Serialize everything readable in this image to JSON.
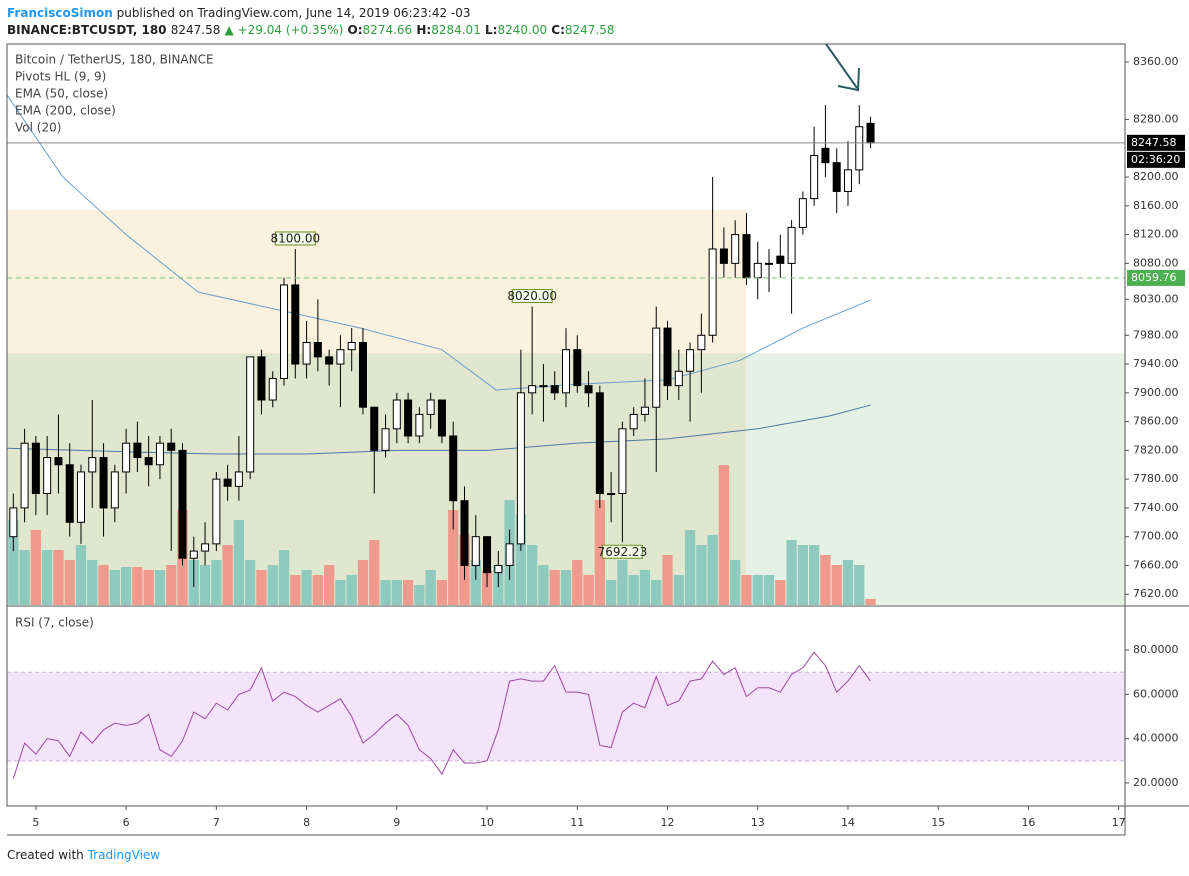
{
  "header": {
    "author": "FranciscoSimon",
    "published": "published on TradingView.com, June 14, 2019 06:23:42 -03",
    "symbol": "BINANCE:BTCUSDT, 180",
    "last": "8247.58",
    "change": "▲ +29.04 (+0.35%)",
    "ohlc": [
      {
        "label": "O:",
        "value": "8274.66"
      },
      {
        "label": "H:",
        "value": "8284.01"
      },
      {
        "label": "L:",
        "value": "8240.00"
      },
      {
        "label": "C:",
        "value": "8247.58"
      }
    ]
  },
  "footer": {
    "text": "Created with",
    "brand": "TradingView"
  },
  "chart_data": [
    {
      "type": "candlestick",
      "title": "Bitcoin / TetherUS, 180, BINANCE",
      "legend": [
        "Pivots HL (9, 9)",
        "EMA (50, close)",
        "EMA (200, close)",
        "Vol (20)"
      ],
      "xlim": [
        4.68,
        17.07
      ],
      "xticks": [
        5,
        6,
        7,
        8,
        9,
        10,
        11,
        12,
        13,
        14,
        15,
        16,
        17
      ],
      "ylim": [
        7605,
        8385
      ],
      "yticks": [
        {
          "value": 7620,
          "label": "7620.00"
        },
        {
          "value": 7660,
          "label": "7660.00"
        },
        {
          "value": 7700,
          "label": "7700.00"
        },
        {
          "value": 7740,
          "label": "7740.00"
        },
        {
          "value": 7780,
          "label": "7780.00"
        },
        {
          "value": 7820,
          "label": "7820.00"
        },
        {
          "value": 7860,
          "label": "7860.00"
        },
        {
          "value": 7900,
          "label": "7900.00"
        },
        {
          "value": 7940,
          "label": "7940.00"
        },
        {
          "value": 7980,
          "label": "7980.00"
        },
        {
          "value": 8030,
          "label": "8030.00"
        },
        {
          "value": 8080,
          "label": "8080.00"
        },
        {
          "value": 8120,
          "label": "8120.00"
        },
        {
          "value": 8160,
          "label": "8160.00"
        },
        {
          "value": 8200,
          "label": "8200.00"
        },
        {
          "value": 8280,
          "label": "8280.00"
        },
        {
          "value": 8360,
          "label": "8360.00"
        }
      ],
      "x": [
        4.75,
        4.875,
        5,
        5.125,
        5.25,
        5.375,
        5.5,
        5.625,
        5.75,
        5.875,
        6,
        6.125,
        6.25,
        6.375,
        6.5,
        6.625,
        6.75,
        6.875,
        7,
        7.125,
        7.25,
        7.375,
        7.5,
        7.625,
        7.75,
        7.875,
        8,
        8.125,
        8.25,
        8.375,
        8.5,
        8.625,
        8.75,
        8.875,
        9,
        9.125,
        9.25,
        9.375,
        9.5,
        9.625,
        9.75,
        9.875,
        10,
        10.125,
        10.25,
        10.375,
        10.5,
        10.625,
        10.75,
        10.875,
        11,
        11.125,
        11.25,
        11.375,
        11.5,
        11.625,
        11.75,
        11.875,
        12,
        12.125,
        12.25,
        12.375,
        12.5,
        12.625,
        12.75,
        12.875,
        13,
        13.125,
        13.25,
        13.375,
        13.5,
        13.625,
        13.75,
        13.875,
        14,
        14.125,
        14.25
      ],
      "candles": [
        [
          7700,
          7760,
          7680,
          7740
        ],
        [
          7740,
          7850,
          7720,
          7830
        ],
        [
          7830,
          7840,
          7730,
          7760
        ],
        [
          7760,
          7840,
          7730,
          7810
        ],
        [
          7810,
          7870,
          7760,
          7800
        ],
        [
          7800,
          7830,
          7700,
          7720
        ],
        [
          7720,
          7800,
          7690,
          7790
        ],
        [
          7790,
          7890,
          7740,
          7810
        ],
        [
          7810,
          7830,
          7700,
          7740
        ],
        [
          7740,
          7800,
          7720,
          7790
        ],
        [
          7790,
          7850,
          7760,
          7830
        ],
        [
          7830,
          7860,
          7790,
          7810
        ],
        [
          7810,
          7840,
          7770,
          7800
        ],
        [
          7800,
          7840,
          7780,
          7830
        ],
        [
          7830,
          7850,
          7680,
          7820
        ],
        [
          7820,
          7830,
          7660,
          7670
        ],
        [
          7670,
          7700,
          7630,
          7680
        ],
        [
          7680,
          7720,
          7660,
          7690
        ],
        [
          7690,
          7790,
          7680,
          7780
        ],
        [
          7780,
          7800,
          7750,
          7770
        ],
        [
          7770,
          7840,
          7750,
          7790
        ],
        [
          7790,
          7950,
          7780,
          7950
        ],
        [
          7950,
          7960,
          7870,
          7890
        ],
        [
          7890,
          7930,
          7880,
          7920
        ],
        [
          7920,
          8060,
          7910,
          8050
        ],
        [
          8050,
          8100,
          7920,
          7940
        ],
        [
          7940,
          8000,
          7920,
          7970
        ],
        [
          7970,
          8030,
          7930,
          7950
        ],
        [
          7950,
          7960,
          7910,
          7940
        ],
        [
          7940,
          7980,
          7880,
          7960
        ],
        [
          7960,
          7990,
          7930,
          7970
        ],
        [
          7970,
          7990,
          7870,
          7880
        ],
        [
          7880,
          7880,
          7760,
          7820
        ],
        [
          7820,
          7870,
          7810,
          7850
        ],
        [
          7850,
          7900,
          7830,
          7890
        ],
        [
          7890,
          7900,
          7830,
          7840
        ],
        [
          7840,
          7880,
          7830,
          7870
        ],
        [
          7870,
          7900,
          7850,
          7890
        ],
        [
          7890,
          7890,
          7830,
          7840
        ],
        [
          7840,
          7860,
          7710,
          7750
        ],
        [
          7750,
          7770,
          7640,
          7660
        ],
        [
          7660,
          7730,
          7640,
          7700
        ],
        [
          7700,
          7700,
          7630,
          7650
        ],
        [
          7650,
          7680,
          7630,
          7660
        ],
        [
          7660,
          7710,
          7640,
          7690
        ],
        [
          7690,
          7960,
          7680,
          7900
        ],
        [
          7900,
          8020,
          7870,
          7910
        ],
        [
          7910,
          7940,
          7860,
          7910
        ],
        [
          7910,
          7930,
          7890,
          7900
        ],
        [
          7900,
          7990,
          7880,
          7960
        ],
        [
          7960,
          7980,
          7900,
          7910
        ],
        [
          7910,
          7930,
          7880,
          7900
        ],
        [
          7900,
          7910,
          7740,
          7760
        ],
        [
          7760,
          7790,
          7720,
          7760
        ],
        [
          7760,
          7860,
          7692.23,
          7850
        ],
        [
          7850,
          7880,
          7840,
          7870
        ],
        [
          7870,
          7920,
          7860,
          7880
        ],
        [
          7880,
          8020,
          7790,
          7990
        ],
        [
          7990,
          8000,
          7890,
          7910
        ],
        [
          7910,
          7960,
          7890,
          7930
        ],
        [
          7930,
          7970,
          7860,
          7960
        ],
        [
          7960,
          8010,
          7900,
          7980
        ],
        [
          7980,
          8200,
          7970,
          8100
        ],
        [
          8100,
          8130,
          8060,
          8080
        ],
        [
          8080,
          8140,
          8060,
          8120
        ],
        [
          8120,
          8150,
          8050,
          8060
        ],
        [
          8060,
          8110,
          8030,
          8080
        ],
        [
          8080,
          8100,
          8040,
          8080
        ],
        [
          8090,
          8120,
          8060,
          8080
        ],
        [
          8080,
          8140,
          8010,
          8130
        ],
        [
          8130,
          8180,
          8120,
          8170
        ],
        [
          8170,
          8270,
          8160,
          8230
        ],
        [
          8240,
          8300,
          8200,
          8220
        ],
        [
          8220,
          8240,
          8150,
          8180
        ],
        [
          8180,
          8250,
          8160,
          8210
        ],
        [
          8210,
          8300,
          8190,
          8270
        ],
        [
          8274.66,
          8284.01,
          8240,
          8247.58
        ]
      ],
      "volumes": [
        85,
        55,
        75,
        55,
        55,
        45,
        60,
        45,
        40,
        35,
        38,
        38,
        35,
        35,
        40,
        95,
        45,
        40,
        45,
        60,
        85,
        45,
        35,
        40,
        55,
        30,
        35,
        30,
        40,
        25,
        30,
        45,
        65,
        25,
        25,
        25,
        20,
        35,
        25,
        95,
        70,
        45,
        35,
        40,
        105,
        90,
        60,
        40,
        35,
        35,
        45,
        30,
        105,
        25,
        45,
        30,
        35,
        25,
        50,
        30,
        75,
        60,
        70,
        140,
        45,
        30,
        30,
        30,
        25,
        65,
        60,
        60,
        50,
        40,
        45,
        40,
        6
      ],
      "up_color": "#ffffff",
      "down_color": "#000000",
      "vol_up_color": "#8fcabf",
      "vol_down_color": "#ef9a8c",
      "ema": [
        {
          "name": "EMA (50, close)",
          "color": "#6a9fd0",
          "x": [
            4.68,
            5.3,
            6.0,
            6.8,
            7.7,
            8.6,
            9.5,
            10.1,
            11.0,
            12.0,
            12.8,
            13.5,
            14.25
          ],
          "values": [
            8314,
            8200,
            8120,
            8040,
            8015,
            7990,
            7960,
            7904,
            7912,
            7918,
            7945,
            7990,
            8029
          ]
        },
        {
          "name": "EMA (200, close)",
          "color": "#4a76a8",
          "x": [
            4.68,
            6.0,
            7.0,
            8.0,
            9.0,
            10.0,
            11.0,
            12.0,
            13.0,
            13.8,
            14.25
          ],
          "values": [
            7823,
            7818,
            7815,
            7815,
            7820,
            7820,
            7830,
            7836,
            7850,
            7868,
            7883
          ]
        }
      ],
      "pivots": [
        {
          "x": 7.875,
          "value": 8100,
          "label": "8100.00",
          "side": "high"
        },
        {
          "x": 10.5,
          "value": 8020,
          "label": "8020.00",
          "side": "high"
        },
        {
          "x": 11.5,
          "value": 7692.23,
          "label": "7692.23",
          "side": "low"
        }
      ],
      "zones": [
        {
          "x": [
            4.68,
            12.87
          ],
          "y": [
            7605,
            8154
          ],
          "color": "rgba(240,215,160,0.35)"
        },
        {
          "x": [
            4.68,
            17.07
          ],
          "y": [
            7605,
            7955
          ],
          "color": "rgba(170,210,170,0.3)"
        }
      ],
      "lines": [
        {
          "value": 8247.58,
          "label": "8247.58",
          "color": "#888",
          "dash": false,
          "box": "#000"
        },
        {
          "value": 8059.76,
          "label": "8059.76",
          "color": "#7cc27c",
          "dash": true,
          "box": "#4caf50"
        }
      ],
      "countdown": "02:36:20"
    },
    {
      "type": "line",
      "title": "RSI (7, close)",
      "xlim": [
        4.68,
        17.07
      ],
      "ylim": [
        9.6,
        99.9
      ],
      "yticks": [
        {
          "value": 20,
          "label": "20.0000"
        },
        {
          "value": 40,
          "label": "40.0000"
        },
        {
          "value": 60,
          "label": "60.0000"
        },
        {
          "value": 80,
          "label": "80.0000"
        }
      ],
      "band": [
        30,
        70
      ],
      "band_color": "#f3e3fb",
      "color": "#9c4a9c",
      "values": [
        22,
        38,
        33,
        40,
        39,
        32,
        43,
        38,
        44,
        47,
        46,
        47,
        51,
        35,
        32,
        39,
        52,
        49,
        56,
        53,
        60,
        62,
        72,
        57,
        61,
        59,
        55,
        52,
        55,
        58,
        50,
        38,
        42,
        47,
        51,
        46,
        35,
        31,
        24,
        35,
        29,
        29,
        30,
        44,
        66,
        67,
        66,
        66,
        73,
        61,
        61,
        60,
        37,
        36,
        52,
        56,
        54,
        68,
        55,
        57,
        66,
        67,
        75,
        69,
        72,
        59,
        63,
        63,
        61,
        69,
        72,
        79,
        73,
        61,
        66,
        73,
        66
      ]
    }
  ]
}
